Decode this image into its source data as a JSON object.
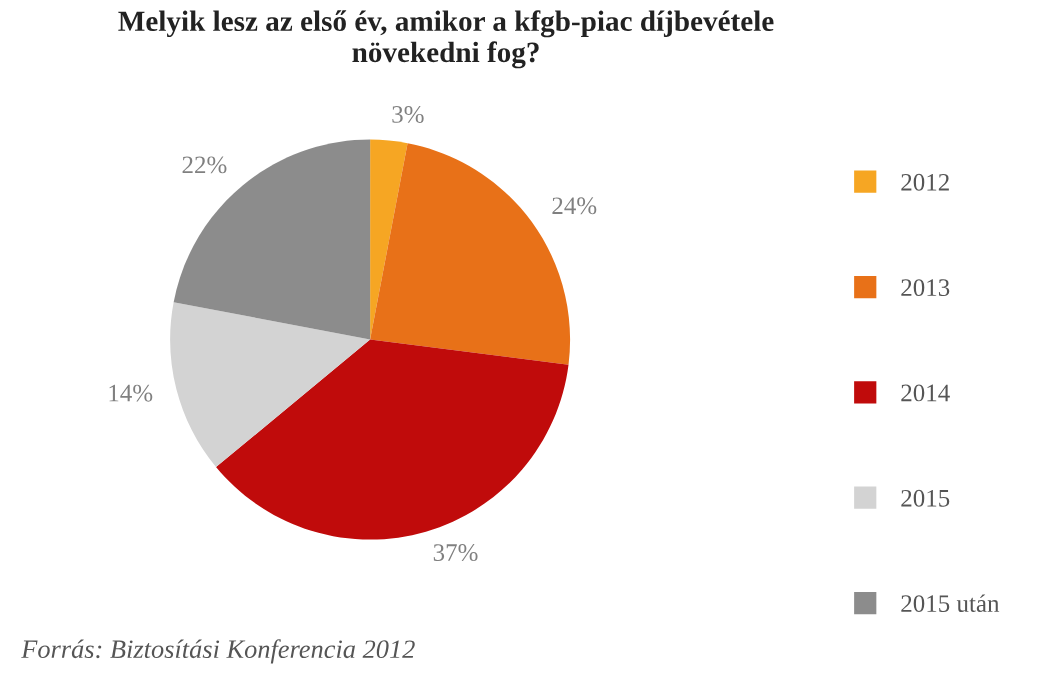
{
  "chart_data": {
    "type": "pie",
    "title": "Melyik lesz az első év, amikor a kfgb-piac díjbevétele\nnövekedni fog?",
    "categories": [
      "2012",
      "2013",
      "2014",
      "2015",
      "2015 után"
    ],
    "values": [
      3,
      24,
      37,
      14,
      22
    ],
    "colors": [
      "#f6a623",
      "#e87118",
      "#c00b0b",
      "#d3d3d3",
      "#8c8c8c"
    ],
    "value_labels": [
      "3%",
      "24%",
      "37%",
      "14%",
      "22%"
    ],
    "legend": "right",
    "annotations": [
      "Forrás: Biztosítási Konferencia 2012"
    ]
  }
}
